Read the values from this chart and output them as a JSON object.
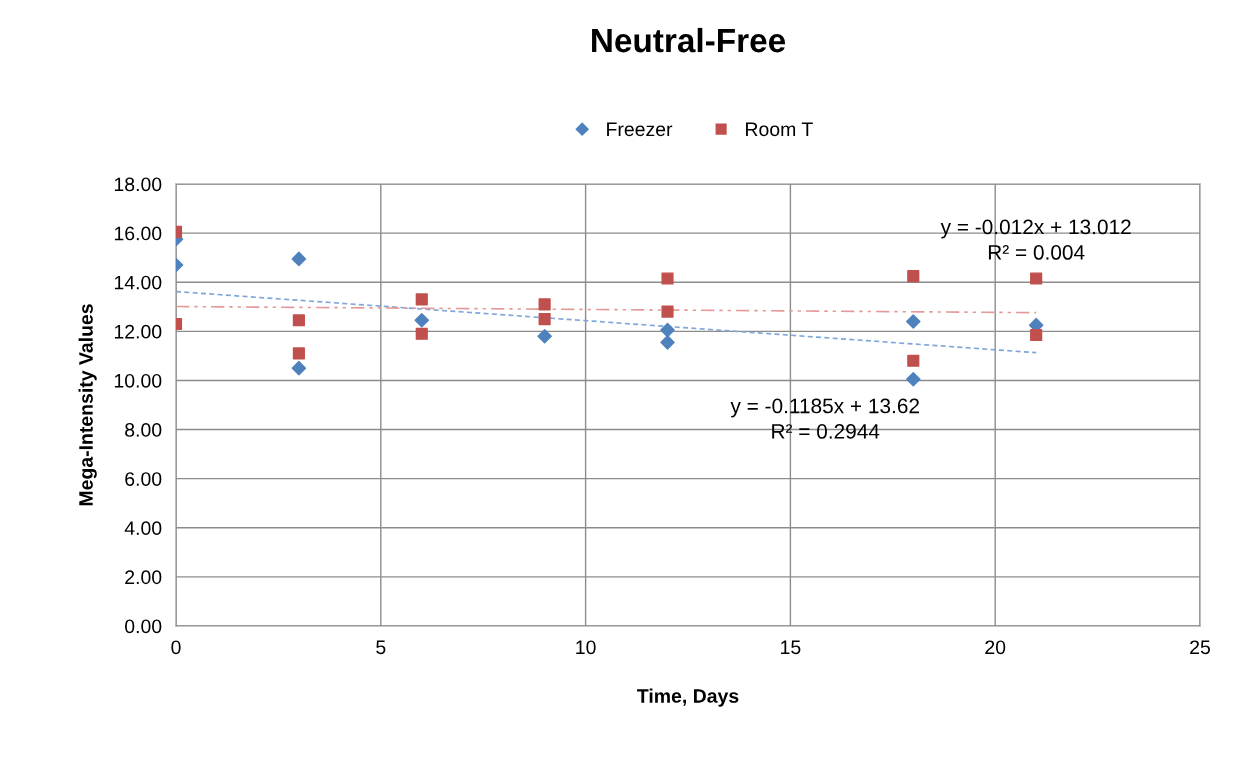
{
  "chart_data": {
    "type": "scatter",
    "title": "Neutral-Free",
    "xlabel": "Time, Days",
    "ylabel": "Mega-Intensity Values",
    "series": [
      {
        "name": "Freezer",
        "color": "#4f81bd",
        "marker": "diamond",
        "x": [
          0,
          0,
          3,
          3,
          6,
          9,
          12,
          12,
          18,
          18,
          21
        ],
        "values": [
          15.75,
          14.7,
          14.95,
          10.5,
          12.45,
          11.8,
          12.05,
          11.55,
          12.4,
          10.05,
          12.25
        ]
      },
      {
        "name": "Room T",
        "color": "#c0504d",
        "marker": "square",
        "x": [
          0,
          0,
          3,
          3,
          6,
          6,
          9,
          9,
          12,
          12,
          18,
          18,
          21,
          21
        ],
        "values": [
          16.05,
          12.3,
          12.45,
          11.1,
          13.3,
          11.9,
          13.1,
          12.5,
          14.15,
          12.8,
          14.25,
          10.8,
          14.15,
          11.85
        ]
      },
      {
        "type": "line",
        "color": "#7fa6d8",
        "line_style": "dashed",
        "x": [
          0,
          21
        ],
        "values": [
          13.62,
          11.13
        ]
      },
      {
        "type": "line",
        "color": "#e49a98",
        "line_style": "dashdot",
        "x": [
          0,
          21
        ],
        "values": [
          13.01,
          12.76
        ]
      }
    ],
    "annotations": [
      "y = -0.012x + 13.012\nR² = 0.004",
      "y = -0.1185x + 13.62\nR² = 0.2944"
    ],
    "xlim": [
      0,
      25
    ],
    "xticks": [
      0,
      5,
      10,
      15,
      20,
      25
    ],
    "ylim": [
      0,
      18
    ],
    "yticks": [
      {
        "value": 0,
        "label": "0.00"
      },
      {
        "value": 2,
        "label": "2.00"
      },
      {
        "value": 4,
        "label": "4.00"
      },
      {
        "value": 6,
        "label": "6.00"
      },
      {
        "value": 8,
        "label": "8.00"
      },
      {
        "value": 10,
        "label": "10.00"
      },
      {
        "value": 12,
        "label": "12.00"
      },
      {
        "value": 14,
        "label": "14.00"
      },
      {
        "value": 16,
        "label": "16.00"
      },
      {
        "value": 18,
        "label": "18.00"
      }
    ],
    "grid": true,
    "legend": "top"
  }
}
